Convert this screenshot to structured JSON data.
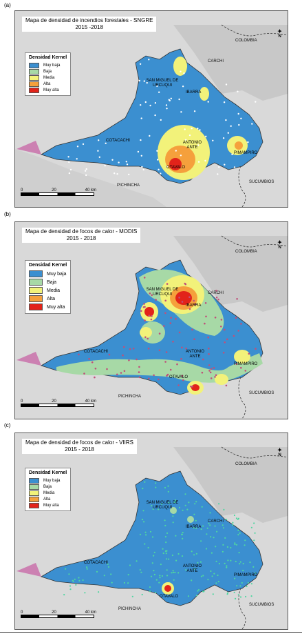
{
  "colors": {
    "muy_baja": "#3b8fd0",
    "baja": "#a7d9a6",
    "media": "#f2f27a",
    "alta": "#f5a03c",
    "muy_alta": "#e2231a",
    "terrain": "#c9c9c9",
    "outside_bg": "#e8e8e8"
  },
  "legend": {
    "title": "Densidad Kernel",
    "items": [
      "Muy baja",
      "Baja",
      "Media",
      "Alta",
      "Muy alta"
    ]
  },
  "panels": [
    {
      "label": "(a)",
      "title_line1": "Mapa de densidad de incendios forestales - SNGRE",
      "title_line2": "2015 -2018",
      "places": {
        "colombia": "COLOMBIA",
        "carchi": "CARCHI",
        "san_miguel": "SAN MIGUEL DE URCUQUI",
        "ibarra": "IBARRA",
        "cotacachi": "COTACACHI",
        "antonio_ante": "ANTONIO ANTE",
        "pimampiro": "PIMAMPIRO",
        "otavalo": "OTAVALO",
        "pichincha": "PICHINCHA",
        "sucumbios": "SUCUMBIOS"
      },
      "scale": [
        "0",
        "20",
        "40 km"
      ]
    },
    {
      "label": "(b)",
      "title_line1": "Mapa de densidad de focos de calor - MODIS",
      "title_line2": "2015 - 2018",
      "places": {
        "colombia": "COLOMBIA",
        "carchi": "CARCHI",
        "san_miguel": "SAN MIGUEL DE URCUQUI",
        "ibarra": "IBARRA",
        "cotacachi": "COTACACHI",
        "antonio_ante": "ANTONIO ANTE",
        "pimampiro": "PIMAMPIRO",
        "otavalo": "OTAVALO",
        "pichincha": "PICHINCHA",
        "sucumbios": "SUCUMBIOS"
      },
      "scale": [
        "0",
        "20",
        "40 km"
      ]
    },
    {
      "label": "(c)",
      "title_line1": "Mapa de densidad de focos de calor - VIIRS",
      "title_line2": "2015 - 2018",
      "places": {
        "colombia": "COLOMBIA",
        "carchi": "CARCHI",
        "san_miguel": "SAN MIGUEL DE URCUQUI",
        "ibarra": "IBARRA",
        "cotacachi": "COTACACHI",
        "antonio_ante": "ANTONIO ANTE",
        "pimampiro": "PIMAMPIRO",
        "otavalo": "OTAVALO",
        "pichincha": "PICHINCHA",
        "sucumbios": "SUCUMBIOS"
      },
      "scale": [
        "0",
        "20",
        "40 km"
      ]
    }
  ],
  "north_label": "N"
}
